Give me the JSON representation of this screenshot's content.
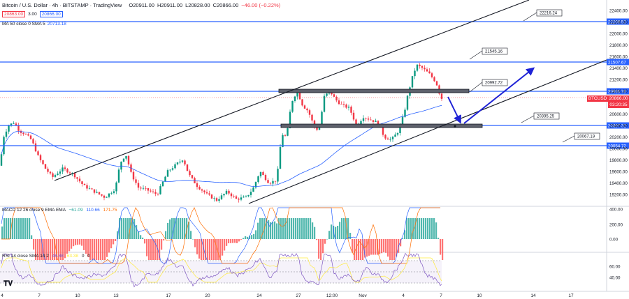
{
  "header": {
    "title": "Bitcoin / U.S. Dollar · 4h · BITSTAMP · TradingView",
    "ohlc": [
      "O20911.00",
      "H20911.00",
      "L20828.00",
      "C20866.00",
      "−46.00 (−0.22%)"
    ],
    "sell_price": "20863.00",
    "spread": "3.00",
    "buy_price": "20866.00"
  },
  "ma_legend": {
    "label": "MA 50 close 0 SMA 5",
    "value": "20713.18"
  },
  "macd_legend": {
    "label": "MACD 12 26 close 9 EMA EMA",
    "values": [
      "−61.09",
      "110.66",
      "171.75"
    ]
  },
  "rsi_legend": {
    "label": "RSI 14 close SMA 14 2",
    "values": [
      "46.88",
      "63.38",
      "0",
      "0"
    ]
  },
  "symbol_tag": "BTCUSD",
  "last_price": "20866.00",
  "countdown": "03:20:35",
  "price_axis": [
    "22400.00",
    "22200.00",
    "22000.00",
    "21800.00",
    "21600.00",
    "21400.00",
    "21200.00",
    "21000.00",
    "20800.00",
    "20600.00",
    "20400.00",
    "20200.00",
    "20000.00",
    "19800.00",
    "19600.00",
    "19400.00",
    "19200.00"
  ],
  "level_tags": [
    "22209.53",
    "21507.67",
    "20985.78",
    "20397.32",
    "20054.72"
  ],
  "callouts": [
    "22216.24",
    "21545.16",
    "20992.72",
    "20395.25",
    "20067.19"
  ],
  "macd_axis": [
    "400.00",
    "200.00",
    "0.00"
  ],
  "rsi_axis": [
    "60.00",
    "40.00"
  ],
  "time_axis": [
    "4",
    "7",
    "10",
    "13",
    "17",
    "20",
    "24",
    "27",
    "12:00",
    "Nov",
    "4",
    "7",
    "10",
    "14",
    "17"
  ],
  "colors": {
    "up": "#089981",
    "down": "#f23645",
    "level": "#2962ff",
    "ma": "#2962ff",
    "arrow": "#1e22d6"
  }
}
